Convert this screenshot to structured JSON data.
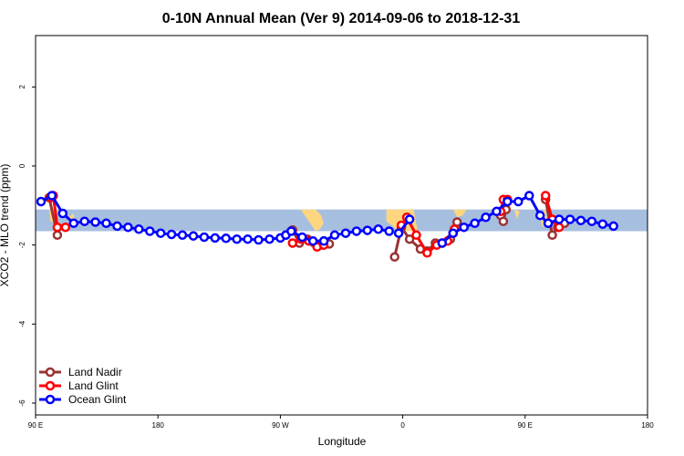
{
  "chart_data": {
    "type": "line",
    "title": "0-10N Annual Mean (Ver 9)   2014-09-06 to 2018-12-31",
    "xlabel": "Longitude",
    "ylabel": "XCO2 - MLO trend (ppm)",
    "xlim": [
      90,
      450
    ],
    "ylim": [
      -6.3,
      3.3
    ],
    "x_ticks": [
      {
        "value": 90,
        "label": "90 E"
      },
      {
        "value": 180,
        "label": "180"
      },
      {
        "value": 270,
        "label": "90 W"
      },
      {
        "value": 360,
        "label": "0"
      },
      {
        "value": 450,
        "label": "90 E"
      },
      {
        "value": 540,
        "label": "180"
      }
    ],
    "y_ticks": [
      {
        "value": 2,
        "label": "2"
      },
      {
        "value": 0,
        "label": "0"
      },
      {
        "value": -2,
        "label": "-2"
      },
      {
        "value": -4,
        "label": "-4"
      },
      {
        "value": -6,
        "label": "-6"
      }
    ],
    "legend_position": "bottom-left",
    "colors": {
      "ocean_band": "#a7bfdf",
      "land": "#fdd67f",
      "land_nadir": "#993333",
      "land_glint": "#ff0000",
      "ocean_glint": "#0000ff"
    },
    "series": [
      {
        "name": "Land Nadir",
        "color": "#993333",
        "segments": [
          {
            "x": [
              100,
              106
            ],
            "y": [
              -0.8,
              -1.75
            ]
          },
          {
            "x": [
              279,
              284,
              290,
              295,
              300,
              306
            ],
            "y": [
              -1.62,
              -1.95,
              -1.85,
              -1.95,
              -2.0,
              -1.97
            ]
          },
          {
            "x": [
              354,
              359,
              365,
              373,
              378,
              384,
              389,
              395
            ],
            "y": [
              -2.3,
              -1.55,
              -1.85,
              -2.1,
              -2.15,
              -1.95,
              -1.95,
              -1.85
            ]
          },
          {
            "x": [
              397,
              400
            ],
            "y": [
              -1.7,
              -1.42
            ]
          },
          {
            "x": [
              432,
              434,
              436
            ],
            "y": [
              -1.25,
              -1.4,
              -1.1
            ]
          },
          {
            "x": [
              465,
              470,
              474,
              479
            ],
            "y": [
              -0.85,
              -1.75,
              -1.55,
              -1.45
            ]
          }
        ]
      },
      {
        "name": "Land Glint",
        "color": "#ff0000",
        "segments": [
          {
            "x": [
              101,
              103,
              106,
              112
            ],
            "y": [
              -0.8,
              -0.75,
              -1.55,
              -1.55
            ]
          },
          {
            "x": [
              279,
              285,
              291,
              297,
              302
            ],
            "y": [
              -1.95,
              -1.85,
              -1.9,
              -2.05,
              -2.0
            ]
          },
          {
            "x": [
              359,
              363,
              370,
              378,
              385,
              393,
              398
            ],
            "y": [
              -1.5,
              -1.3,
              -1.75,
              -2.2,
              -2.0,
              -1.9,
              -1.6
            ]
          },
          {
            "x": [
              432,
              434,
              437
            ],
            "y": [
              -1.15,
              -0.85,
              -0.85
            ]
          },
          {
            "x": [
              465,
              470,
              475
            ],
            "y": [
              -0.75,
              -1.35,
              -1.55
            ]
          }
        ]
      },
      {
        "name": "Ocean Glint",
        "color": "#0000ff",
        "segments": [
          {
            "x": [
              94,
              102,
              110,
              118,
              126,
              134,
              142,
              150,
              158,
              166,
              174,
              182,
              190,
              198,
              206,
              214,
              222,
              230,
              238,
              246,
              254,
              262,
              270,
              274
            ],
            "y": [
              -0.9,
              -0.75,
              -1.2,
              -1.45,
              -1.4,
              -1.42,
              -1.45,
              -1.52,
              -1.55,
              -1.6,
              -1.65,
              -1.7,
              -1.73,
              -1.75,
              -1.77,
              -1.8,
              -1.82,
              -1.83,
              -1.85,
              -1.85,
              -1.87,
              -1.85,
              -1.82,
              -1.75
            ]
          },
          {
            "x": [
              274,
              278,
              286,
              294,
              302
            ],
            "y": [
              -1.75,
              -1.65,
              -1.8,
              -1.9,
              -1.9
            ]
          },
          {
            "x": [
              302,
              310,
              318,
              326,
              334,
              342,
              350
            ],
            "y": [
              -1.9,
              -1.75,
              -1.7,
              -1.65,
              -1.63,
              -1.6,
              -1.65
            ]
          },
          {
            "x": [
              357,
              365
            ],
            "y": [
              -1.7,
              -1.35
            ]
          },
          {
            "x": [
              389,
              397,
              405,
              413,
              421,
              429,
              437,
              445,
              453,
              461,
              467
            ],
            "y": [
              -1.95,
              -1.7,
              -1.55,
              -1.45,
              -1.3,
              -1.15,
              -0.9,
              -0.9,
              -0.75,
              -1.25,
              -1.45
            ]
          },
          {
            "x": [
              467,
              475,
              483,
              491,
              499,
              507,
              515
            ],
            "y": [
              -1.45,
              -1.35,
              -1.35,
              -1.38,
              -1.4,
              -1.47,
              -1.52
            ]
          }
        ]
      }
    ]
  }
}
